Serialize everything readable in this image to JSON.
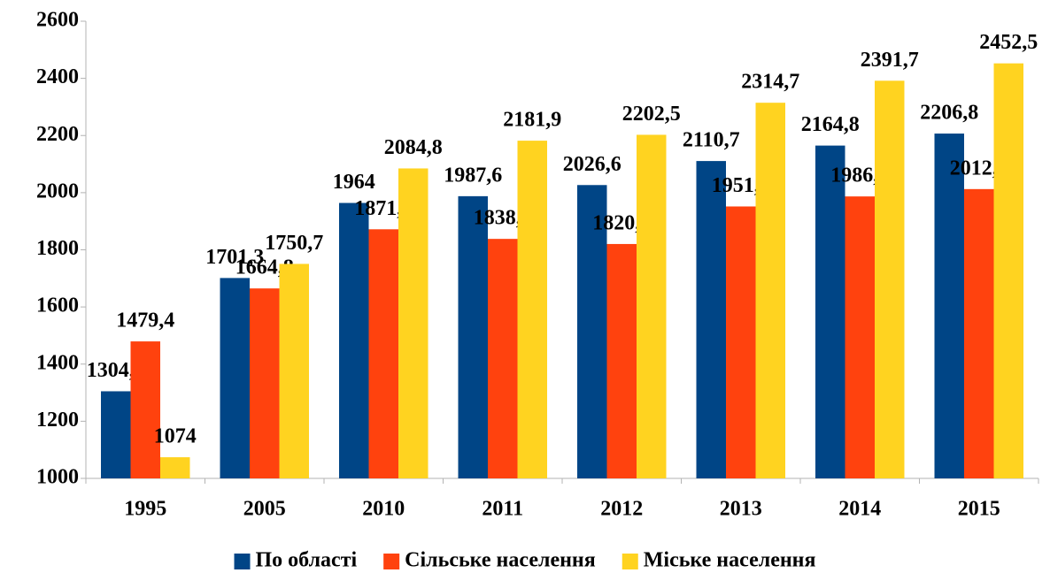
{
  "chart_data": {
    "type": "bar",
    "categories": [
      "1995",
      "2005",
      "2010",
      "2011",
      "2012",
      "2013",
      "2014",
      "2015"
    ],
    "series": [
      {
        "name": "По області",
        "color": "#004586",
        "values": [
          1304.9,
          1701.3,
          1964,
          1987.6,
          2026.6,
          2110.7,
          2164.8,
          2206.8
        ],
        "value_labels": [
          "1304,9",
          "1701,3",
          "1964",
          "1987,6",
          "2026,6",
          "2110,7",
          "2164,8",
          "2206,8"
        ]
      },
      {
        "name": "Сільське населення",
        "color": "#ff420e",
        "values": [
          1479.4,
          1664.8,
          1871.8,
          1838.2,
          1820.3,
          1951.7,
          1986.8,
          2012.5
        ],
        "value_labels": [
          "1479,4",
          "1664,8",
          "1871,8",
          "1838,2",
          "1820,3",
          "1951,7",
          "1986,8",
          "2012,5"
        ]
      },
      {
        "name": "Міське населення",
        "color": "#ffd320",
        "values": [
          1074,
          1750.7,
          2084.8,
          2181.9,
          2202.5,
          2314.7,
          2391.7,
          2452.5
        ],
        "value_labels": [
          "1074",
          "1750,7",
          "2084,8",
          "2181,9",
          "2202,5",
          "2314,7",
          "2391,7",
          "2452,5"
        ]
      }
    ],
    "ylim": [
      1000,
      2600
    ],
    "yticks": [
      1000,
      1200,
      1400,
      1600,
      1800,
      2000,
      2200,
      2400,
      2600
    ],
    "grid": false,
    "legend": "bottom"
  }
}
